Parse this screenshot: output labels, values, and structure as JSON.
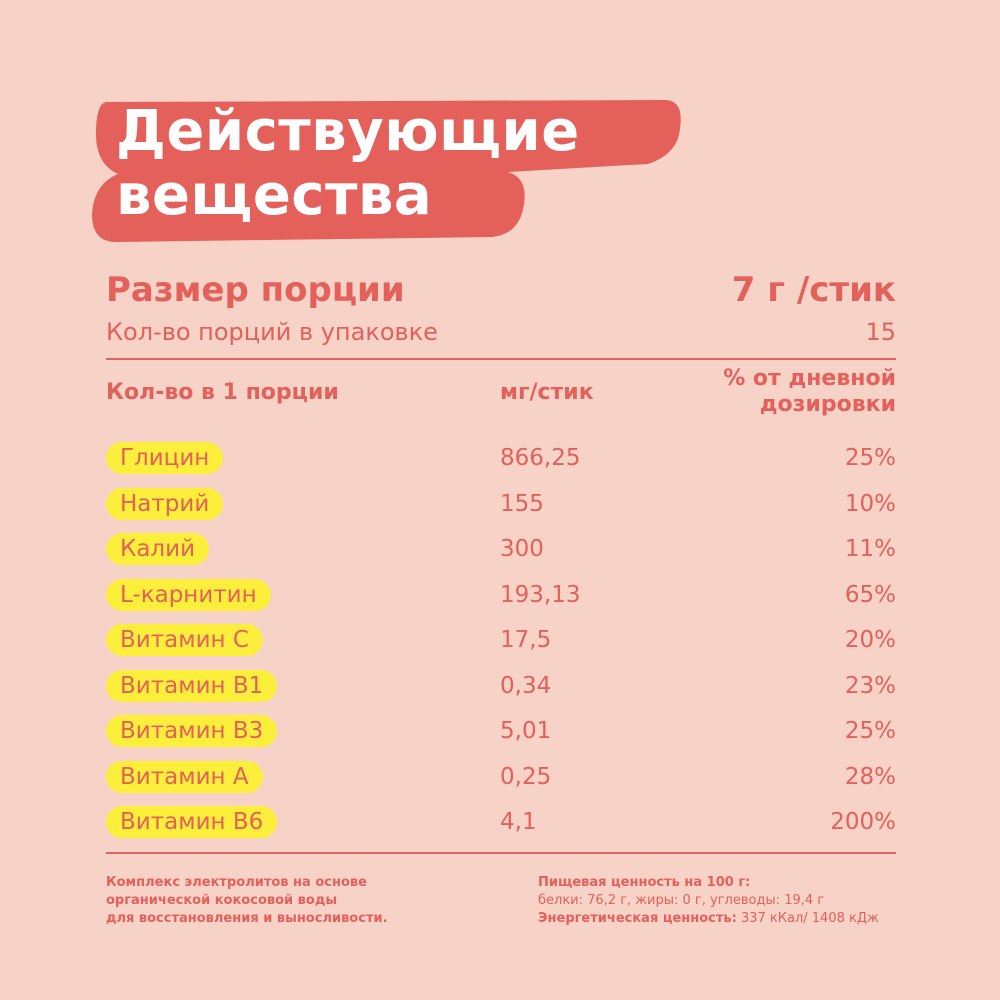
{
  "title": {
    "line1": "Действующие",
    "line2": "вещества"
  },
  "serving": {
    "size_label": "Размер порции",
    "size_value": "7 г /стик",
    "count_label": "Кол-во порций в упаковке",
    "count_value": "15"
  },
  "table": {
    "headers": {
      "name": "Кол-во в 1 порции",
      "mg": "мг/стик",
      "pct": "% от дневной\nдозировки"
    },
    "rows": [
      {
        "name": "Глицин",
        "mg": "866,25",
        "pct": "25%"
      },
      {
        "name": "Натрий",
        "mg": "155",
        "pct": "10%"
      },
      {
        "name": "Калий",
        "mg": "300",
        "pct": "11%"
      },
      {
        "name": "L-карнитин",
        "mg": "193,13",
        "pct": "65%"
      },
      {
        "name": "Витамин С",
        "mg": "17,5",
        "pct": "20%"
      },
      {
        "name": "Витамин В1",
        "mg": "0,34",
        "pct": "23%"
      },
      {
        "name": "Витамин В3",
        "mg": "5,01",
        "pct": "25%"
      },
      {
        "name": "Витамин А",
        "mg": "0,25",
        "pct": "28%"
      },
      {
        "name": "Витамин В6",
        "mg": "4,1",
        "pct": "200%"
      }
    ]
  },
  "footer": {
    "left": {
      "line1": "Комплекс электролитов на основе",
      "line2": "органической кокосовой воды",
      "line3": "для восстановления и выносливости."
    },
    "right": {
      "heading": "Пищевая ценность на 100 г:",
      "macros": "белки: 76,2 г, жиры: 0 г, углеводы: 19,4 г",
      "energy_label": "Энергетическая ценность:",
      "energy_value": "337 кКал/ 1408 кДж"
    }
  },
  "colors": {
    "background": "#f7d2c7",
    "accent": "#e4605a",
    "highlight": "#fcef3c",
    "title_text": "#ffffff"
  }
}
